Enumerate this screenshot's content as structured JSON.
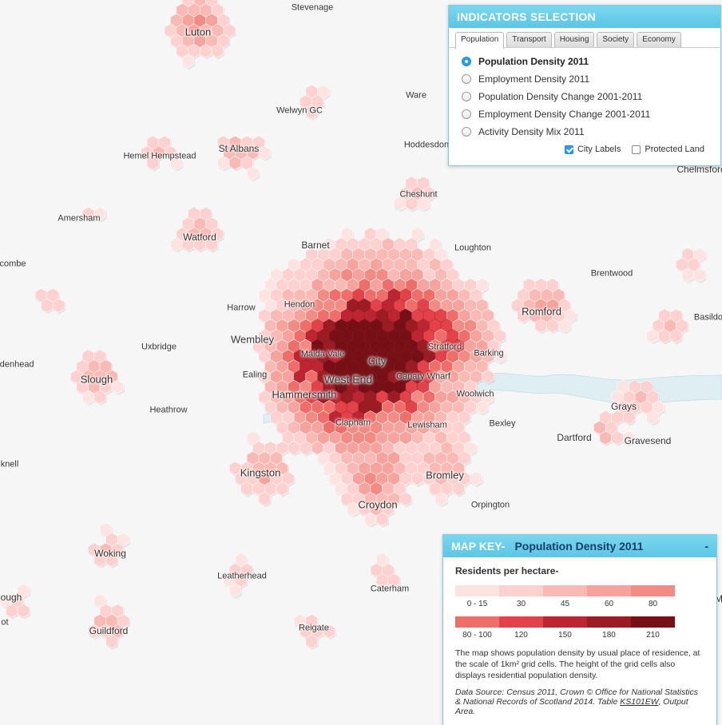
{
  "indicators": {
    "title": "INDICATORS SELECTION",
    "tabs": [
      "Population",
      "Transport",
      "Housing",
      "Society",
      "Economy"
    ],
    "active_tab": "Population",
    "options": [
      {
        "label": "Population Density 2011",
        "selected": true
      },
      {
        "label": "Employment Density 2011",
        "selected": false
      },
      {
        "label": "Population Density Change 2001-2011",
        "selected": false
      },
      {
        "label": "Employment Density Change 2001-2011",
        "selected": false
      },
      {
        "label": "Activity Density Mix 2011",
        "selected": false
      }
    ],
    "city_labels": {
      "label": "City Labels",
      "checked": true
    },
    "protected_land": {
      "label": "Protected Land",
      "checked": false
    }
  },
  "map_key": {
    "prefix": "MAP KEY-",
    "title": "Population Density 2011",
    "minimize": "-",
    "subtitle": "Residents per hectare-",
    "scale_row1": {
      "colors": [
        "#fde4e3",
        "#fcd1cf",
        "#f9bab6",
        "#f6a39e",
        "#f38b85"
      ],
      "labels": [
        "0 - 15",
        "30",
        "45",
        "60",
        "80"
      ]
    },
    "scale_row2": {
      "colors": [
        "#ef6e6a",
        "#e3424a",
        "#bd2532",
        "#9c1c24",
        "#761016"
      ],
      "labels": [
        "80 - 100",
        "120",
        "150",
        "180",
        "210"
      ]
    },
    "description": "The map shows population density by usual place of residence, at the scale of 1km² grid cells. The height of the grid cells also displays residential population density.",
    "source_prefix": "Data Source: Census 2011, Crown © Office for National Statistics & National Records of Scotland 2014. Table ",
    "source_link": "KS101EW",
    "source_suffix": ", Output Area."
  },
  "map": {
    "water_color": "#dfeef2",
    "background_color": "#f6f6f6",
    "city_labels": [
      {
        "name": "Stevenage",
        "size": "small"
      },
      {
        "name": "Luton",
        "size": "large"
      },
      {
        "name": "Ware",
        "size": "small"
      },
      {
        "name": "Welwyn GC",
        "size": "small"
      },
      {
        "name": "Hoddesdon",
        "size": "small"
      },
      {
        "name": "Hemel Hempstead",
        "size": "small"
      },
      {
        "name": "St Albans",
        "size": "medium"
      },
      {
        "name": "Chelmsford",
        "size": "medium"
      },
      {
        "name": "Cheshunt",
        "size": "small"
      },
      {
        "name": "Amersham",
        "size": "small"
      },
      {
        "name": "Watford",
        "size": "medium"
      },
      {
        "name": "Barnet",
        "size": "medium"
      },
      {
        "name": "Loughton",
        "size": "small"
      },
      {
        "name": "Brentwood",
        "size": "small"
      },
      {
        "name": "combe",
        "size": "small"
      },
      {
        "name": "Harrow",
        "size": "small"
      },
      {
        "name": "Hendon",
        "size": "small"
      },
      {
        "name": "Romford",
        "size": "large"
      },
      {
        "name": "Basildon",
        "size": "small"
      },
      {
        "name": "Uxbridge",
        "size": "small"
      },
      {
        "name": "Wembley",
        "size": "large"
      },
      {
        "name": "Maida Vale",
        "size": "small"
      },
      {
        "name": "City",
        "size": "large"
      },
      {
        "name": "Stratford",
        "size": "small"
      },
      {
        "name": "Barking",
        "size": "small"
      },
      {
        "name": "idenhead",
        "size": "small"
      },
      {
        "name": "Slough",
        "size": "large"
      },
      {
        "name": "Ealing",
        "size": "small"
      },
      {
        "name": "West End",
        "size": "xlarge"
      },
      {
        "name": "Canary Wharf",
        "size": "small"
      },
      {
        "name": "Hammersmith",
        "size": "large"
      },
      {
        "name": "Woolwich",
        "size": "small"
      },
      {
        "name": "Grays",
        "size": "medium"
      },
      {
        "name": "Heathrow",
        "size": "small"
      },
      {
        "name": "Clapham",
        "size": "small"
      },
      {
        "name": "Lewisham",
        "size": "small"
      },
      {
        "name": "Bexley",
        "size": "small"
      },
      {
        "name": "Dartford",
        "size": "medium"
      },
      {
        "name": "Gravesend",
        "size": "medium"
      },
      {
        "name": "knell",
        "size": "small"
      },
      {
        "name": "Kingston",
        "size": "large"
      },
      {
        "name": "Bromley",
        "size": "large"
      },
      {
        "name": "Croydon",
        "size": "large"
      },
      {
        "name": "Orpington",
        "size": "small"
      },
      {
        "name": "Woking",
        "size": "medium"
      },
      {
        "name": "Leatherhead",
        "size": "small"
      },
      {
        "name": "Caterham",
        "size": "small"
      },
      {
        "name": "ough",
        "size": "medium"
      },
      {
        "name": "ot",
        "size": "small"
      },
      {
        "name": "Guildford",
        "size": "medium"
      },
      {
        "name": "Reigate",
        "size": "small"
      },
      {
        "name": "M",
        "size": "medium"
      }
    ]
  }
}
